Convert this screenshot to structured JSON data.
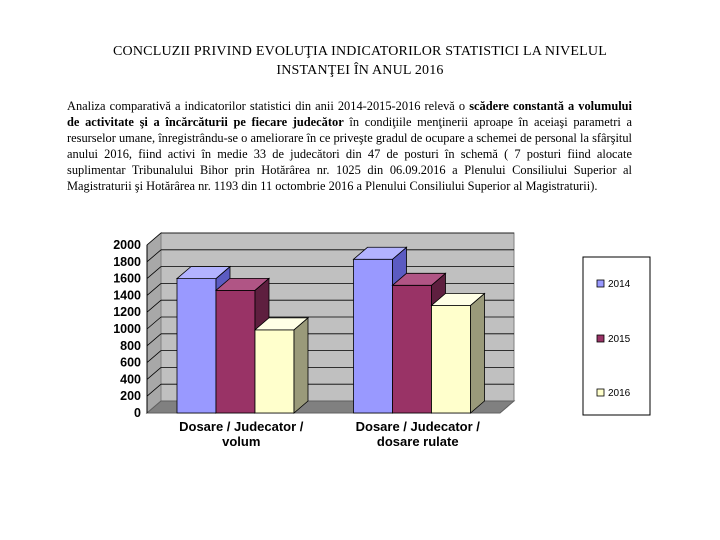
{
  "document": {
    "title_line1": "CONCLUZII PRIVIND EVOLUŢIA INDICATORILOR STATISTICI LA NIVELUL",
    "title_line2": "INSTANŢEI ÎN ANUL 2016",
    "paragraph": {
      "part1": "Analiza comparativă a indicatorilor statistici din anii 2014-2015-2016 relevă o ",
      "bold1": "scădere constantă a volumului de activitate şi a încărcăturii pe fiecare judecător",
      "part2": " în condiţiile menţinerii aproape în aceiaşi parametri a resurselor umane, înregistrându-se o ameliorare în ce priveşte gradul de ocupare a schemei de personal la sfârşitul anului 2016, fiind activi în medie 33 de judecători din 47 de posturi în schemă ( 7 posturi fiind alocate suplimentar Tribunalului Bihor prin Hotărârea nr. 1025 din 06.09.2016 a Plenului Consiliului Superior al Magistraturii şi Hotărârea nr. 1193 din 11 octombrie 2016 a Plenului Consiliului Superior al Magistraturii)."
    }
  },
  "chart_data": {
    "type": "bar",
    "style": "3d-clustered-column",
    "categories": [
      [
        "Dosare / Judecator /",
        "volum"
      ],
      [
        "Dosare / Judecator /",
        "dosare rulate"
      ]
    ],
    "series": [
      {
        "name": "2014",
        "values": [
          1600,
          1830
        ],
        "color": "#9999ff",
        "side": "#5b5bc2",
        "top": "#b3b3ff"
      },
      {
        "name": "2015",
        "values": [
          1460,
          1520
        ],
        "color": "#993366",
        "side": "#5e1f3f",
        "top": "#b05585"
      },
      {
        "name": "2016",
        "values": [
          990,
          1280
        ],
        "color": "#ffffcc",
        "side": "#9a9a7a",
        "top": "#ffffe6"
      }
    ],
    "ylim": [
      0,
      2000
    ],
    "yticks": [
      "0",
      "200",
      "400",
      "600",
      "800",
      "1000",
      "1200",
      "1400",
      "1600",
      "1800",
      "2000"
    ],
    "grid": true,
    "legend": "right",
    "wall_color": "#c0c0c0",
    "floor_color": "#808080"
  }
}
